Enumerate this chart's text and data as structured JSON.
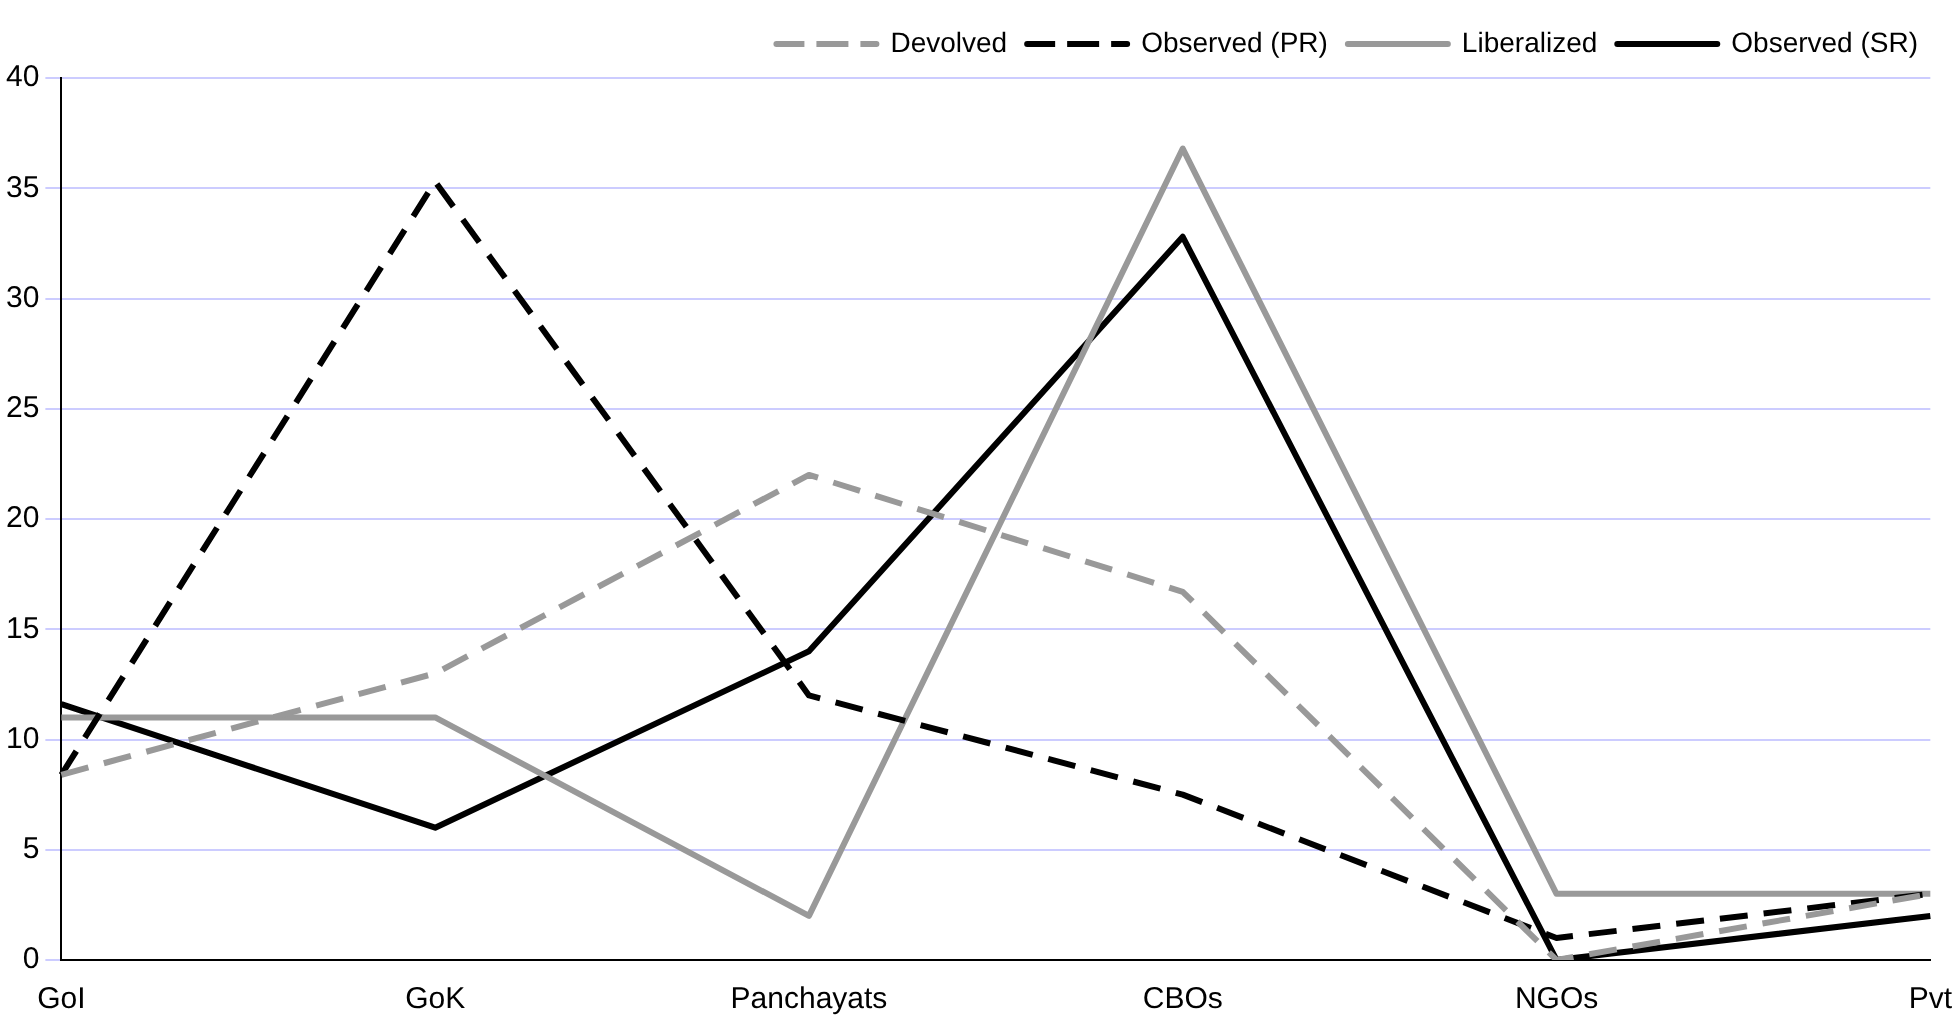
{
  "chart_data": {
    "type": "line",
    "categories": [
      "GoI",
      "GoK",
      "Panchayats",
      "CBOs",
      "NGOs",
      "Pvt"
    ],
    "series": [
      {
        "name": "Devolved",
        "color": "#999999",
        "line_style": "dashed",
        "values": [
          8.4,
          13,
          22,
          16.7,
          0,
          3
        ]
      },
      {
        "name": "Observed (PR)",
        "color": "#000000",
        "line_style": "dashed",
        "values": [
          8.4,
          35.3,
          12,
          7.5,
          1,
          3
        ]
      },
      {
        "name": "Liberalized",
        "color": "#999999",
        "line_style": "solid",
        "values": [
          11,
          11,
          2,
          36.8,
          3,
          3
        ]
      },
      {
        "name": "Observed (SR)",
        "color": "#000000",
        "line_style": "solid",
        "values": [
          11.6,
          6,
          14,
          32.8,
          0,
          2
        ]
      }
    ],
    "ylim": [
      0,
      40
    ],
    "yticks": [
      0,
      5,
      10,
      15,
      20,
      25,
      30,
      35,
      40
    ],
    "grid": "y",
    "legend": "top right",
    "marker": "none"
  }
}
